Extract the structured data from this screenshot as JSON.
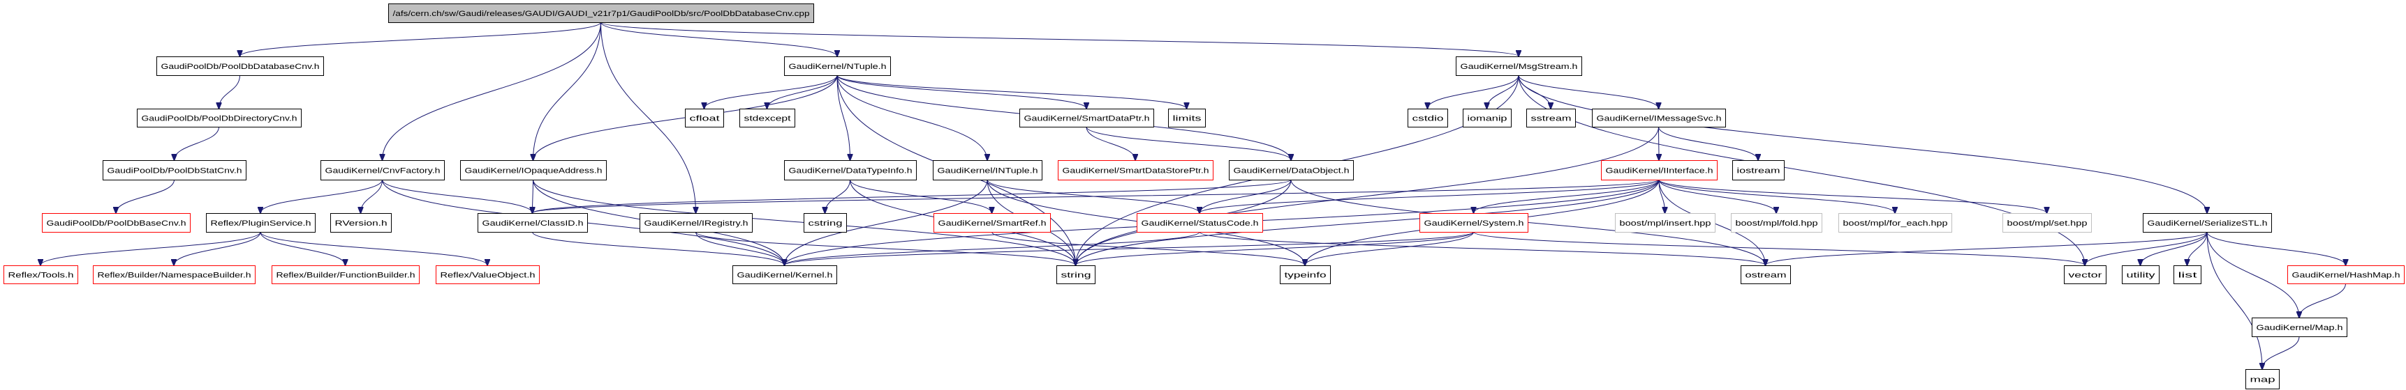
{
  "graph": {
    "colors": {
      "edge": "#191970",
      "normal_border": "#000000",
      "missing_border": "#ff0000",
      "external_border": "#bfbfbf",
      "root_fill": "#bfbfbf"
    },
    "nodes": [
      {
        "id": "root",
        "label": "/afs/cern.ch/sw/Gaudi/releases/GAUDI/GAUDI_v21r7p1/GaudiPoolDb/src/PoolDbDatabaseCnv.cpp",
        "kind": "root"
      },
      {
        "id": "dbcnv",
        "label": "GaudiPoolDb/PoolDbDatabaseCnv.h",
        "kind": "normal"
      },
      {
        "id": "dircnv",
        "label": "GaudiPoolDb/PoolDbDirectoryCnv.h",
        "kind": "normal"
      },
      {
        "id": "statcnv",
        "label": "GaudiPoolDb/PoolDbStatCnv.h",
        "kind": "normal"
      },
      {
        "id": "basecnv",
        "label": "GaudiPoolDb/PoolDbBaseCnv.h",
        "kind": "missing"
      },
      {
        "id": "cnvfactory",
        "label": "GaudiKernel/CnvFactory.h",
        "kind": "normal"
      },
      {
        "id": "iopaque",
        "label": "GaudiKernel/IOpaqueAddress.h",
        "kind": "normal"
      },
      {
        "id": "plugin",
        "label": "Reflex/PluginService.h",
        "kind": "normal"
      },
      {
        "id": "rversion",
        "label": "RVersion.h",
        "kind": "normal"
      },
      {
        "id": "classid",
        "label": "GaudiKernel/ClassID.h",
        "kind": "normal"
      },
      {
        "id": "iregistry",
        "label": "GaudiKernel/IRegistry.h",
        "kind": "normal"
      },
      {
        "id": "tools",
        "label": "Reflex/Tools.h",
        "kind": "missing"
      },
      {
        "id": "nsbuilder",
        "label": "Reflex/Builder/NamespaceBuilder.h",
        "kind": "missing"
      },
      {
        "id": "fnbuilder",
        "label": "Reflex/Builder/FunctionBuilder.h",
        "kind": "missing"
      },
      {
        "id": "valueobj",
        "label": "Reflex/ValueObject.h",
        "kind": "missing"
      },
      {
        "id": "kernel",
        "label": "GaudiKernel/Kernel.h",
        "kind": "normal"
      },
      {
        "id": "cfloat",
        "label": "cfloat",
        "kind": "normal"
      },
      {
        "id": "stdexcept",
        "label": "stdexcept",
        "kind": "normal"
      },
      {
        "id": "ntuple",
        "label": "GaudiKernel/NTuple.h",
        "kind": "normal"
      },
      {
        "id": "msgstream",
        "label": "GaudiKernel/MsgStream.h",
        "kind": "normal"
      },
      {
        "id": "smartdataptr",
        "label": "GaudiKernel/SmartDataPtr.h",
        "kind": "normal"
      },
      {
        "id": "limits",
        "label": "limits",
        "kind": "normal"
      },
      {
        "id": "cstdio",
        "label": "cstdio",
        "kind": "normal"
      },
      {
        "id": "iomanip",
        "label": "iomanip",
        "kind": "normal"
      },
      {
        "id": "sstream",
        "label": "sstream",
        "kind": "normal"
      },
      {
        "id": "imsgsvc",
        "label": "GaudiKernel/IMessageSvc.h",
        "kind": "normal"
      },
      {
        "id": "datatypeinfo",
        "label": "GaudiKernel/DataTypeInfo.h",
        "kind": "normal"
      },
      {
        "id": "intuple",
        "label": "GaudiKernel/INTuple.h",
        "kind": "normal"
      },
      {
        "id": "sdstoreptr",
        "label": "GaudiKernel/SmartDataStorePtr.h",
        "kind": "missing"
      },
      {
        "id": "dataobject",
        "label": "GaudiKernel/DataObject.h",
        "kind": "normal"
      },
      {
        "id": "iinterface",
        "label": "GaudiKernel/IInterface.h",
        "kind": "missing"
      },
      {
        "id": "iostream",
        "label": "iostream",
        "kind": "normal"
      },
      {
        "id": "cstring",
        "label": "cstring",
        "kind": "normal"
      },
      {
        "id": "smartref",
        "label": "GaudiKernel/SmartRef.h",
        "kind": "missing"
      },
      {
        "id": "statuscode",
        "label": "GaudiKernel/StatusCode.h",
        "kind": "missing"
      },
      {
        "id": "system",
        "label": "GaudiKernel/System.h",
        "kind": "missing"
      },
      {
        "id": "insert",
        "label": "boost/mpl/insert.hpp",
        "kind": "external"
      },
      {
        "id": "fold",
        "label": "boost/mpl/fold.hpp",
        "kind": "external"
      },
      {
        "id": "foreach",
        "label": "boost/mpl/for_each.hpp",
        "kind": "external"
      },
      {
        "id": "set",
        "label": "boost/mpl/set.hpp",
        "kind": "external"
      },
      {
        "id": "serialize",
        "label": "GaudiKernel/SerializeSTL.h",
        "kind": "normal"
      },
      {
        "id": "string",
        "label": "string",
        "kind": "normal"
      },
      {
        "id": "typeinfo",
        "label": "typeinfo",
        "kind": "normal"
      },
      {
        "id": "ostream",
        "label": "ostream",
        "kind": "normal"
      },
      {
        "id": "vector",
        "label": "vector",
        "kind": "normal"
      },
      {
        "id": "utility",
        "label": "utility",
        "kind": "normal"
      },
      {
        "id": "list",
        "label": "list",
        "kind": "normal"
      },
      {
        "id": "hashmap",
        "label": "GaudiKernel/HashMap.h",
        "kind": "missing"
      },
      {
        "id": "maph",
        "label": "GaudiKernel/Map.h",
        "kind": "normal"
      },
      {
        "id": "map",
        "label": "map",
        "kind": "normal"
      }
    ],
    "edges": [
      [
        "root",
        "dbcnv"
      ],
      [
        "root",
        "cnvfactory"
      ],
      [
        "root",
        "iopaque"
      ],
      [
        "root",
        "iregistry"
      ],
      [
        "root",
        "ntuple"
      ],
      [
        "root",
        "msgstream"
      ],
      [
        "dbcnv",
        "dircnv"
      ],
      [
        "dircnv",
        "statcnv"
      ],
      [
        "statcnv",
        "basecnv"
      ],
      [
        "cnvfactory",
        "plugin"
      ],
      [
        "cnvfactory",
        "rversion"
      ],
      [
        "cnvfactory",
        "classid"
      ],
      [
        "cnvfactory",
        "kernel"
      ],
      [
        "iopaque",
        "classid"
      ],
      [
        "iopaque",
        "kernel"
      ],
      [
        "iopaque",
        "string"
      ],
      [
        "plugin",
        "tools"
      ],
      [
        "plugin",
        "nsbuilder"
      ],
      [
        "plugin",
        "fnbuilder"
      ],
      [
        "plugin",
        "valueobj"
      ],
      [
        "classid",
        "kernel"
      ],
      [
        "iregistry",
        "kernel"
      ],
      [
        "iregistry",
        "string"
      ],
      [
        "ntuple",
        "iopaque"
      ],
      [
        "ntuple",
        "cfloat"
      ],
      [
        "ntuple",
        "stdexcept"
      ],
      [
        "ntuple",
        "string"
      ],
      [
        "ntuple",
        "datatypeinfo"
      ],
      [
        "ntuple",
        "intuple"
      ],
      [
        "ntuple",
        "smartdataptr"
      ],
      [
        "ntuple",
        "limits"
      ],
      [
        "ntuple",
        "dataobject"
      ],
      [
        "smartdataptr",
        "sdstoreptr"
      ],
      [
        "smartdataptr",
        "dataobject"
      ],
      [
        "datatypeinfo",
        "cstring"
      ],
      [
        "datatypeinfo",
        "string"
      ],
      [
        "datatypeinfo",
        "smartref"
      ],
      [
        "intuple",
        "kernel"
      ],
      [
        "intuple",
        "string"
      ],
      [
        "intuple",
        "typeinfo"
      ],
      [
        "intuple",
        "statuscode"
      ],
      [
        "dataobject",
        "classid"
      ],
      [
        "dataobject",
        "statuscode"
      ],
      [
        "dataobject",
        "string"
      ],
      [
        "dataobject",
        "ostream"
      ],
      [
        "statuscode",
        "kernel"
      ],
      [
        "statuscode",
        "ostream"
      ],
      [
        "smartref",
        "typeinfo"
      ],
      [
        "msgstream",
        "string"
      ],
      [
        "msgstream",
        "cstdio"
      ],
      [
        "msgstream",
        "iomanip"
      ],
      [
        "msgstream",
        "sstream"
      ],
      [
        "msgstream",
        "imsgsvc"
      ],
      [
        "msgstream",
        "vector"
      ],
      [
        "msgstream",
        "serialize"
      ],
      [
        "imsgsvc",
        "iinterface"
      ],
      [
        "imsgsvc",
        "iostream"
      ],
      [
        "imsgsvc",
        "string"
      ],
      [
        "iinterface",
        "classid"
      ],
      [
        "iinterface",
        "statuscode"
      ],
      [
        "iinterface",
        "system"
      ],
      [
        "iinterface",
        "kernel"
      ],
      [
        "iinterface",
        "string"
      ],
      [
        "iinterface",
        "typeinfo"
      ],
      [
        "iinterface",
        "ostream"
      ],
      [
        "iinterface",
        "insert"
      ],
      [
        "iinterface",
        "fold"
      ],
      [
        "iinterface",
        "foreach"
      ],
      [
        "iinterface",
        "set"
      ],
      [
        "system",
        "kernel"
      ],
      [
        "system",
        "string"
      ],
      [
        "system",
        "typeinfo"
      ],
      [
        "system",
        "vector"
      ],
      [
        "serialize",
        "ostream"
      ],
      [
        "serialize",
        "vector"
      ],
      [
        "serialize",
        "utility"
      ],
      [
        "serialize",
        "list"
      ],
      [
        "serialize",
        "map"
      ],
      [
        "serialize",
        "maph"
      ],
      [
        "serialize",
        "hashmap"
      ],
      [
        "hashmap",
        "maph"
      ],
      [
        "maph",
        "map"
      ]
    ]
  }
}
